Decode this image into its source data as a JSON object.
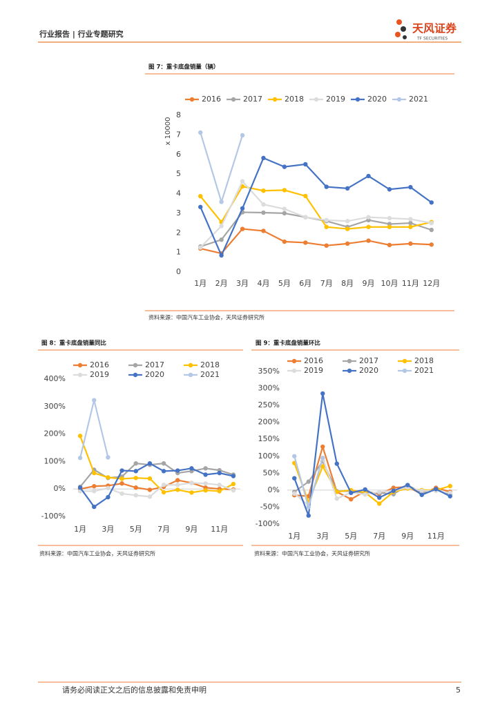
{
  "header": {
    "left": "行业报告 | 行业专题研究",
    "logo_cn": "天风证券",
    "logo_en": "TF SECURITIES"
  },
  "chart_data": [
    {
      "type": "line",
      "title": "图 7：重卡底盘销量（辆）",
      "ylabel": "x 10000",
      "categories": [
        "1月",
        "2月",
        "3月",
        "4月",
        "5月",
        "6月",
        "7月",
        "8月",
        "9月",
        "10月",
        "11月",
        "12月"
      ],
      "ylim": [
        0,
        8
      ],
      "yticks": [
        0,
        1,
        2,
        3,
        4,
        5,
        6,
        7,
        8
      ],
      "series": [
        {
          "name": "2016",
          "color": "#ed7d31",
          "values": [
            1.2,
            0.95,
            2.2,
            2.1,
            1.55,
            1.5,
            1.35,
            1.45,
            1.6,
            1.38,
            1.45,
            1.4
          ]
        },
        {
          "name": "2017",
          "color": "#a5a5a5",
          "values": [
            1.3,
            1.65,
            3.05,
            3.03,
            3.0,
            2.8,
            2.6,
            2.3,
            2.65,
            2.45,
            2.5,
            2.15
          ]
        },
        {
          "name": "2018",
          "color": "#ffc000",
          "values": [
            3.87,
            2.55,
            4.37,
            4.15,
            4.18,
            3.88,
            2.3,
            2.2,
            2.3,
            2.3,
            2.3,
            2.55
          ]
        },
        {
          "name": "2019",
          "color": "#dcdcdc",
          "values": [
            1.25,
            2.35,
            4.63,
            3.45,
            3.22,
            2.8,
            2.65,
            2.6,
            2.8,
            2.75,
            2.7,
            2.5
          ]
        },
        {
          "name": "2020",
          "color": "#4472c4",
          "values": [
            3.32,
            0.85,
            3.25,
            5.82,
            5.37,
            5.5,
            4.35,
            4.27,
            4.9,
            4.22,
            4.33,
            3.55
          ]
        },
        {
          "name": "2021",
          "color": "#b4c7e7",
          "values": [
            7.12,
            3.58,
            6.98,
            null,
            null,
            null,
            null,
            null,
            null,
            null,
            null,
            null
          ]
        }
      ],
      "source": "资料来源：中国汽车工业协会，天风证券研究所"
    },
    {
      "type": "line",
      "title": "图 8：重卡底盘销量同比",
      "categories": [
        "1月",
        null,
        "3月",
        null,
        "5月",
        null,
        "7月",
        null,
        "9月",
        null,
        "11月",
        null
      ],
      "ylim": [
        -100,
        400
      ],
      "yticks": [
        {
          "value": -100,
          "label": "-100%"
        },
        {
          "value": 0,
          "label": "0%"
        },
        {
          "value": 100,
          "label": "100%"
        },
        {
          "value": 200,
          "label": "200%"
        },
        {
          "value": 300,
          "label": "300%"
        },
        {
          "value": 400,
          "label": "400%"
        }
      ],
      "series": [
        {
          "name": "2016",
          "color": "#ed7d31",
          "values": [
            0,
            10,
            12,
            20,
            5,
            -3,
            8,
            32,
            22,
            5,
            0,
            -2
          ]
        },
        {
          "name": "2017",
          "color": "#a5a5a5",
          "values": [
            8,
            70,
            40,
            45,
            93,
            88,
            93,
            58,
            65,
            75,
            68,
            52
          ]
        },
        {
          "name": "2018",
          "color": "#ffc000",
          "values": [
            193,
            58,
            42,
            37,
            40,
            38,
            -12,
            -3,
            -13,
            -5,
            -8,
            18
          ]
        },
        {
          "name": "2019",
          "color": "#dcdcdc",
          "values": [
            -8,
            -8,
            3,
            -17,
            -23,
            -28,
            15,
            15,
            22,
            20,
            15,
            -5
          ]
        },
        {
          "name": "2020",
          "color": "#4472c4",
          "values": [
            5,
            -65,
            -30,
            67,
            65,
            93,
            65,
            67,
            75,
            52,
            58,
            47
          ]
        },
        {
          "name": "2021",
          "color": "#b4c7e7",
          "values": [
            113,
            323,
            115,
            null,
            null,
            null,
            null,
            null,
            null,
            null,
            null,
            null
          ]
        }
      ],
      "source": "资料来源：中国汽车工业协会，天风证券研究所"
    },
    {
      "type": "line",
      "title": "图 9：重卡底盘销量环比",
      "categories": [
        "1月",
        null,
        "3月",
        null,
        "5月",
        null,
        "7月",
        null,
        "9月",
        null,
        "11月",
        null
      ],
      "ylim": [
        -100,
        350
      ],
      "yticks": [
        {
          "value": -100,
          "label": "-100%"
        },
        {
          "value": -50,
          "label": "-50%"
        },
        {
          "value": 0,
          "label": "0%"
        },
        {
          "value": 50,
          "label": "50%"
        },
        {
          "value": 100,
          "label": "100%"
        },
        {
          "value": 150,
          "label": "150%"
        },
        {
          "value": 200,
          "label": "200%"
        },
        {
          "value": 250,
          "label": "250%"
        },
        {
          "value": 300,
          "label": "300%"
        },
        {
          "value": 350,
          "label": "350%"
        }
      ],
      "series": [
        {
          "name": "2016",
          "color": "#ed7d31",
          "values": [
            -15,
            -18,
            128,
            -5,
            -27,
            -3,
            -12,
            7,
            10,
            -12,
            7,
            -5
          ]
        },
        {
          "name": "2017",
          "color": "#a5a5a5",
          "values": [
            -5,
            25,
            85,
            -3,
            -3,
            -8,
            -8,
            -12,
            15,
            -8,
            2,
            -13
          ]
        },
        {
          "name": "2018",
          "color": "#ffc000",
          "values": [
            80,
            -35,
            70,
            -5,
            0,
            -7,
            -40,
            -5,
            5,
            0,
            0,
            12
          ]
        },
        {
          "name": "2019",
          "color": "#dcdcdc",
          "values": [
            -10,
            -45,
            95,
            -25,
            -7,
            -13,
            -5,
            -2,
            8,
            -2,
            -2,
            -8
          ]
        },
        {
          "name": "2020",
          "color": "#4472c4",
          "values": [
            35,
            -75,
            285,
            78,
            -8,
            2,
            -22,
            -2,
            15,
            -14,
            3,
            -18
          ]
        },
        {
          "name": "2021",
          "color": "#b4c7e7",
          "values": [
            100,
            -50,
            95,
            null,
            null,
            null,
            null,
            null,
            null,
            null,
            null,
            null
          ]
        }
      ],
      "source": "资料来源：中国汽车工业协会，天风证券研究所"
    }
  ],
  "footer": {
    "disclaimer": "请务必阅读正文之后的信息披露和免责申明",
    "page": "5"
  }
}
